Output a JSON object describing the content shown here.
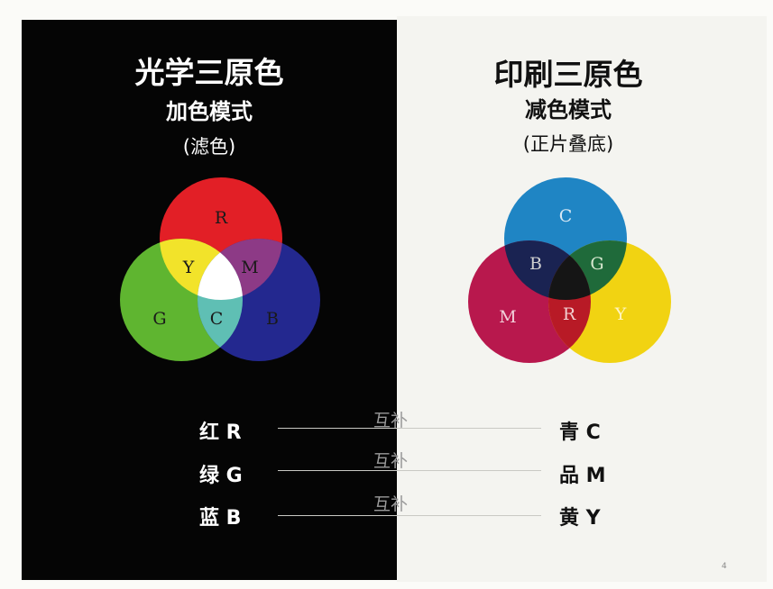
{
  "additive": {
    "title": "光学三原色",
    "subtitle": "加色模式",
    "note": "(滤色)",
    "labels": {
      "r": "R",
      "g": "G",
      "b": "B",
      "y": "Y",
      "m": "M",
      "c": "C"
    },
    "colors": {
      "red": "#e21f26",
      "green": "#5fb530",
      "blue": "#23288f",
      "yellow": "#f2e32a",
      "magenta": "#8d3a86",
      "cyan": "#5fbfb4",
      "white": "#ffffff"
    }
  },
  "subtractive": {
    "title": "印刷三原色",
    "subtitle": "减色模式",
    "note": "(正片叠底)",
    "labels": {
      "c": "C",
      "m": "M",
      "y": "Y",
      "b": "B",
      "g": "G",
      "r": "R"
    },
    "colors": {
      "cyan": "#1f85c4",
      "magenta": "#b8184d",
      "yellow": "#f1d312",
      "blue": "#1a2352",
      "green": "#1f6a3a",
      "red": "#b81a26",
      "black": "#151515"
    }
  },
  "pairs": [
    {
      "left": "红 R",
      "relation": "互补",
      "right": "青 C"
    },
    {
      "left": "绿 G",
      "relation": "互补",
      "right": "品 M"
    },
    {
      "left": "蓝 B",
      "relation": "互补",
      "right": "黄 Y"
    }
  ],
  "page_mark": "4"
}
